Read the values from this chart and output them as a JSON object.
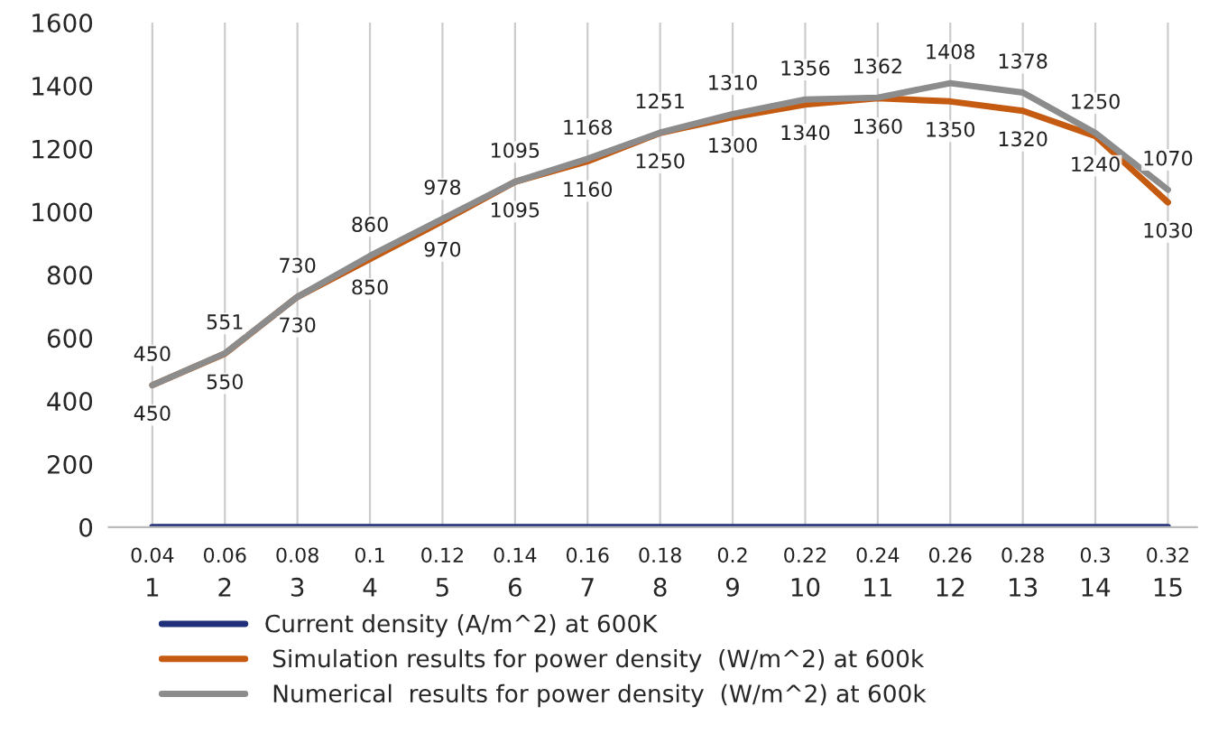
{
  "chart_data": {
    "type": "line",
    "categories": [
      "1",
      "2",
      "3",
      "4",
      "5",
      "6",
      "7",
      "8",
      "9",
      "10",
      "11",
      "12",
      "13",
      "14",
      "15"
    ],
    "series": [
      {
        "name": "Current density (A/m^2) at 600K",
        "color": "#1f2f7a",
        "values": [
          0.04,
          0.06,
          0.08,
          0.1,
          0.12,
          0.14,
          0.16,
          0.18,
          0.2,
          0.22,
          0.24,
          0.26,
          0.28,
          0.3,
          0.32
        ]
      },
      {
        "name": " Simulation results for power density  (W/m^2) at 600k",
        "color": "#c55a11",
        "values": [
          450,
          550,
          730,
          850,
          970,
          1095,
          1160,
          1250,
          1300,
          1340,
          1360,
          1350,
          1320,
          1240,
          1030
        ]
      },
      {
        "name": " Numerical  results for power density  (W/m^2) at 600k",
        "color": "#8c8c8c",
        "values": [
          450,
          551,
          730,
          860,
          978,
          1095,
          1168,
          1251,
          1310,
          1356,
          1362,
          1408,
          1378,
          1250,
          1070
        ]
      }
    ],
    "ylim": [
      0,
      1600
    ],
    "yticks": [
      0,
      200,
      400,
      600,
      800,
      1000,
      1200,
      1400,
      1600
    ],
    "grid": "x",
    "legend": "bottom",
    "data_labels": true,
    "marker": "none",
    "line_style": "solid"
  }
}
